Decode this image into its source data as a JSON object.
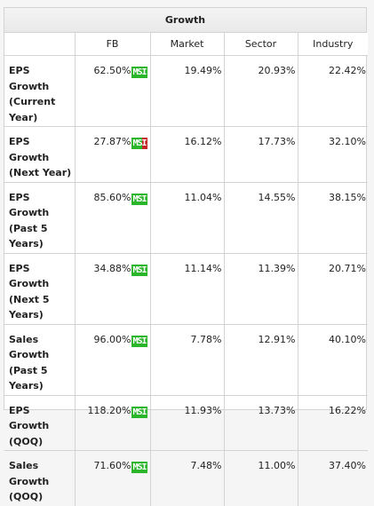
{
  "title": "Growth",
  "columns": [
    "FB",
    "Market",
    "Sector",
    "Industry"
  ],
  "rows": [
    {
      "label": [
        "EPS Growth",
        "(Current",
        "Year)"
      ],
      "fb": "62.50%",
      "badge": "MSI",
      "badge_style": "green",
      "market": "19.49%",
      "sector": "20.93%",
      "industry": "22.42%"
    },
    {
      "label": [
        "EPS Growth",
        "(Next Year)"
      ],
      "fb": "27.87%",
      "badge": "MSI",
      "badge_style": "green-red",
      "market": "16.12%",
      "sector": "17.73%",
      "industry": "32.10%"
    },
    {
      "label": [
        "EPS Growth",
        "(Past 5",
        "Years)"
      ],
      "fb": "85.60%",
      "badge": "MSI",
      "badge_style": "green",
      "market": "11.04%",
      "sector": "14.55%",
      "industry": "38.15%"
    },
    {
      "label": [
        "EPS Growth",
        "(Next 5",
        "Years)"
      ],
      "fb": "34.88%",
      "badge": "MSI",
      "badge_style": "green",
      "market": "11.14%",
      "sector": "11.39%",
      "industry": "20.71%"
    },
    {
      "label": [
        "Sales",
        "Growth",
        "(Past 5",
        "Years)"
      ],
      "fb": "96.00%",
      "badge": "MSI",
      "badge_style": "green",
      "market": "7.78%",
      "sector": "12.91%",
      "industry": "40.10%"
    },
    {
      "label": [
        "EPS Growth",
        "(QOQ)"
      ],
      "fb": "118.20%",
      "badge": "MSI",
      "badge_style": "green",
      "market": "11.93%",
      "sector": "13.73%",
      "industry": "16.22%"
    },
    {
      "label": [
        "Sales",
        "Growth",
        "(QOQ)"
      ],
      "fb": "71.60%",
      "badge": "MSI",
      "badge_style": "green",
      "market": "7.48%",
      "sector": "11.00%",
      "industry": "37.40%"
    }
  ],
  "colors": {
    "badge_green": "#2bb52b",
    "badge_red": "#c62828",
    "border": "#d3d3d3"
  }
}
